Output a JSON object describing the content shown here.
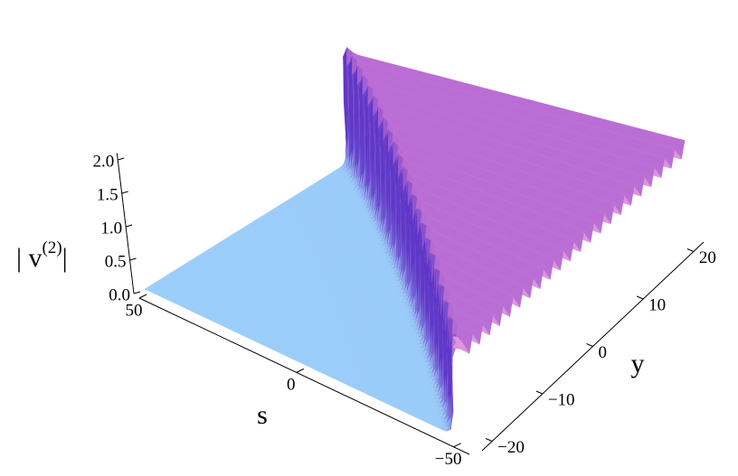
{
  "chart_data": {
    "type": "surface3d",
    "xlabel": "s",
    "ylabel": "y",
    "zlabel": {
      "base": "| v",
      "sup": "(2)",
      "end": "|"
    },
    "xlim": [
      -55,
      50
    ],
    "ylim": [
      -22,
      22
    ],
    "zlim": [
      0,
      2.1
    ],
    "xticks": [
      {
        "value": -50,
        "label": "−50"
      },
      0,
      50
    ],
    "yticks": [
      {
        "value": -20,
        "label": "−20"
      },
      {
        "value": -10,
        "label": "−10"
      },
      0,
      10,
      20
    ],
    "zticks": [
      {
        "value": 0,
        "label": "0.0"
      },
      {
        "value": 0.5,
        "label": "0.5"
      },
      {
        "value": 1,
        "label": "1.0"
      },
      {
        "value": 1.5,
        "label": "1.5"
      },
      {
        "value": 2,
        "label": "2.0"
      }
    ]
  }
}
